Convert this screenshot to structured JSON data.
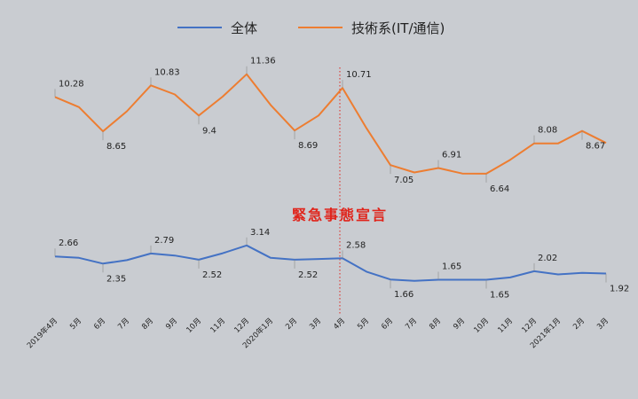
{
  "chart_data": {
    "type": "line",
    "categories": [
      "2019年4月",
      "5月",
      "6月",
      "7月",
      "8月",
      "9月",
      "10月",
      "11月",
      "12月",
      "2020年1月",
      "2月",
      "3月",
      "4月",
      "5月",
      "6月",
      "7月",
      "8月",
      "9月",
      "10月",
      "11月",
      "12月",
      "2021年1月",
      "2月",
      "3月"
    ],
    "series": [
      {
        "name": "全体",
        "color": "#4472c4",
        "values": [
          2.66,
          2.6,
          2.35,
          2.5,
          2.79,
          2.7,
          2.52,
          2.8,
          3.14,
          2.6,
          2.52,
          2.55,
          2.58,
          2.0,
          1.66,
          1.6,
          1.65,
          1.65,
          1.65,
          1.75,
          2.02,
          1.88,
          1.95,
          1.92
        ],
        "labels": [
          {
            "index": 0,
            "text": "2.66"
          },
          {
            "index": 2,
            "text": "2.35"
          },
          {
            "index": 4,
            "text": "2.79"
          },
          {
            "index": 6,
            "text": "2.52"
          },
          {
            "index": 8,
            "text": "3.14"
          },
          {
            "index": 10,
            "text": "2.52"
          },
          {
            "index": 12,
            "text": "2.58"
          },
          {
            "index": 14,
            "text": "1.66"
          },
          {
            "index": 16,
            "text": "1.65"
          },
          {
            "index": 18,
            "text": "1.65"
          },
          {
            "index": 20,
            "text": "2.02"
          },
          {
            "index": 23,
            "text": "1.92"
          }
        ]
      },
      {
        "name": "技術系(IT/通信)",
        "color": "#ed7d31",
        "values": [
          10.28,
          9.8,
          8.65,
          9.6,
          10.83,
          10.4,
          9.4,
          10.3,
          11.36,
          9.9,
          8.69,
          9.4,
          10.71,
          8.8,
          7.05,
          6.7,
          6.91,
          6.65,
          6.64,
          7.3,
          8.08,
          8.08,
          8.67,
          8.1
        ],
        "labels": [
          {
            "index": 0,
            "text": "10.28"
          },
          {
            "index": 2,
            "text": "8.65"
          },
          {
            "index": 4,
            "text": "10.83"
          },
          {
            "index": 6,
            "text": "9.4"
          },
          {
            "index": 8,
            "text": "11.36"
          },
          {
            "index": 10,
            "text": "8.69"
          },
          {
            "index": 12,
            "text": "10.71"
          },
          {
            "index": 14,
            "text": "7.05"
          },
          {
            "index": 16,
            "text": "6.91"
          },
          {
            "index": 18,
            "text": "6.64"
          },
          {
            "index": 20,
            "text": "8.08"
          },
          {
            "index": 22,
            "text": "8.67"
          }
        ]
      }
    ],
    "annotation": {
      "text": "緊急事態宣言",
      "at_category": "4月",
      "line_style": "dotted",
      "color": "#e0241b"
    },
    "legend_placement": "top-center",
    "grid": false
  }
}
